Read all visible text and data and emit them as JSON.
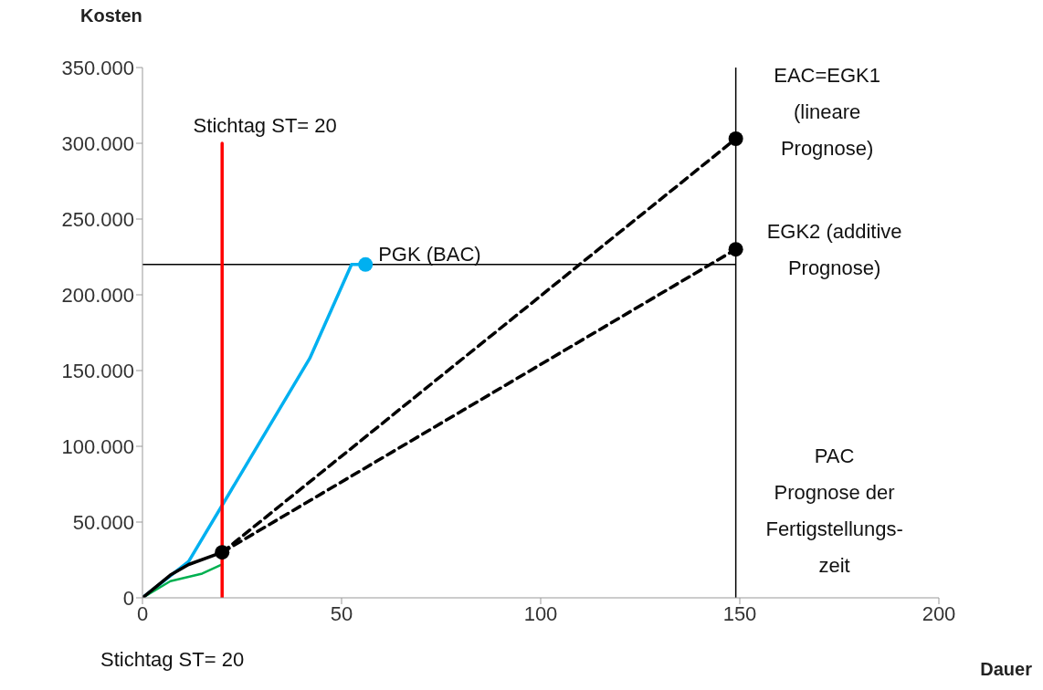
{
  "chart_data": {
    "type": "line",
    "xlabel": "Dauer",
    "ylabel": "Kosten",
    "xlim": [
      0,
      200
    ],
    "xticks": [
      0,
      50,
      100,
      150,
      200
    ],
    "ylim": [
      0,
      350000
    ],
    "yticks": [
      {
        "value": 0,
        "label": "0"
      },
      {
        "value": 50000,
        "label": "50.000"
      },
      {
        "value": 100000,
        "label": "100.000"
      },
      {
        "value": 150000,
        "label": "150.000"
      },
      {
        "value": 200000,
        "label": "200.000"
      },
      {
        "value": 250000,
        "label": "250.000"
      },
      {
        "value": 300000,
        "label": "300.000"
      },
      {
        "value": 350000,
        "label": "350.000"
      }
    ],
    "marker": "none",
    "line_style": "solid",
    "series": [
      {
        "color": "#00b0f0",
        "x": [
          0,
          11.6,
          42,
          52.5,
          56
        ],
        "values": [
          0,
          24000,
          158000,
          220000,
          220000
        ]
      },
      {
        "color": "#00b050",
        "x": [
          0,
          7,
          15,
          20
        ],
        "values": [
          0,
          11000,
          16000,
          22000
        ]
      },
      {
        "color": "#000000",
        "x": [
          0,
          7,
          11.6,
          20
        ],
        "values": [
          0,
          15000,
          22000,
          30000
        ]
      },
      {
        "color": "#000000",
        "line_style": "dashed",
        "x": [
          20,
          149
        ],
        "values": [
          30000,
          303000
        ]
      },
      {
        "color": "#000000",
        "line_style": "dashed",
        "x": [
          20,
          149
        ],
        "values": [
          30000,
          230000
        ]
      },
      {
        "color": "#ff0000",
        "x": [
          20,
          20
        ],
        "values": [
          0,
          300000
        ]
      },
      {
        "type": "scatter",
        "marker": "circle",
        "x": [
          56,
          20,
          149,
          149
        ],
        "values": [
          220000,
          30000,
          303000,
          230000
        ],
        "colors": [
          "#00b0f0",
          "#000000",
          "#000000",
          "#000000"
        ]
      }
    ],
    "ref_lines": [
      {
        "axis": "y",
        "value": 220000,
        "color": "#000000"
      },
      {
        "axis": "x",
        "value": 149,
        "color": "#000000",
        "label": "PAC\nPrognose der\nFertigstellungs-\nzeit"
      }
    ],
    "annotations": [
      {
        "text": "Stichtag ST= 20",
        "x": 20,
        "y": 300000
      },
      {
        "text": "PGK (BAC)",
        "x": 56,
        "y": 220000
      },
      {
        "text": "EAC=EGK1\n(lineare\nPrognose)",
        "x": 149,
        "y": 303000
      },
      {
        "text": "EGK2 (additive\nPrognose)",
        "x": 149,
        "y": 230000
      },
      "Stichtag ST= 20"
    ]
  }
}
